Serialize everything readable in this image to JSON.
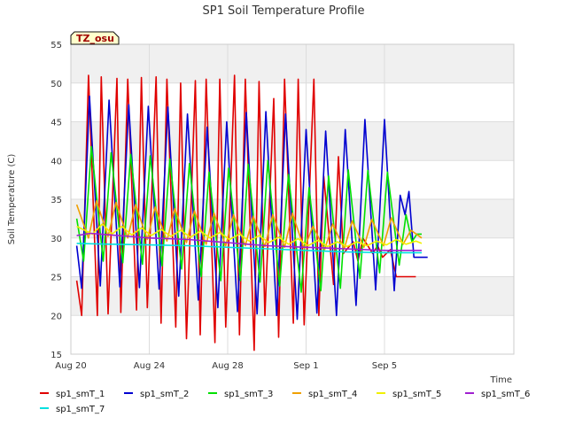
{
  "chart_data": {
    "type": "line",
    "title": "SP1 Soil Temperature Profile",
    "xlabel": "Time",
    "ylabel": "Soil Temperature (C)",
    "badge": "TZ_osu",
    "xlim": [
      0,
      22.6
    ],
    "ylim": [
      15,
      55
    ],
    "yticks": [
      15,
      20,
      25,
      30,
      35,
      40,
      45,
      50,
      55
    ],
    "xticks": [
      {
        "day": 0,
        "label": "Aug 20"
      },
      {
        "day": 4,
        "label": "Aug 24"
      },
      {
        "day": 8,
        "label": "Aug 28"
      },
      {
        "day": 12,
        "label": "Sep 1"
      },
      {
        "day": 16,
        "label": "Sep 5"
      }
    ],
    "grid": true,
    "legend_position": "bottom",
    "series": [
      {
        "name": "sp1_smT_1",
        "color": "#e00000",
        "x": [
          0.3,
          0.55,
          0.9,
          1.35,
          1.55,
          1.9,
          2.35,
          2.55,
          2.9,
          3.35,
          3.6,
          3.9,
          4.35,
          4.6,
          4.9,
          5.35,
          5.6,
          5.9,
          6.35,
          6.6,
          6.9,
          7.35,
          7.6,
          7.9,
          8.35,
          8.6,
          8.9,
          9.35,
          9.6,
          9.9,
          10.35,
          10.6,
          10.9,
          11.35,
          11.6,
          11.9,
          12.4,
          12.65,
          12.9,
          13.4,
          13.65,
          13.9,
          14.4,
          14.65,
          14.9,
          15.4,
          15.65,
          15.9,
          16.3,
          16.6,
          16.8,
          16.95,
          17.05,
          17.2,
          17.35,
          17.6
        ],
        "y": [
          24.5,
          20.0,
          51.0,
          20.0,
          50.8,
          20.2,
          50.6,
          20.4,
          50.5,
          20.7,
          50.7,
          21.0,
          50.8,
          19.0,
          50.5,
          18.5,
          50.0,
          17.0,
          50.3,
          17.5,
          50.5,
          16.5,
          50.5,
          18.5,
          51.0,
          17.5,
          50.5,
          15.5,
          50.2,
          20.0,
          48.0,
          17.2,
          50.5,
          19.0,
          50.5,
          18.8,
          50.5,
          20.0,
          38.0,
          24.0,
          40.5,
          28.0,
          29.5,
          27.0,
          30.0,
          28.0,
          29.0,
          27.5,
          28.5,
          25.0,
          25,
          25,
          25,
          25,
          25,
          25
        ]
      },
      {
        "name": "sp1_smT_2",
        "color": "#0000d0",
        "x": [
          0.3,
          0.55,
          0.95,
          1.5,
          1.95,
          2.5,
          2.95,
          3.5,
          3.95,
          4.5,
          4.95,
          5.5,
          5.95,
          6.5,
          6.95,
          7.5,
          7.95,
          8.5,
          8.95,
          9.5,
          9.95,
          10.5,
          10.95,
          11.55,
          12.0,
          12.55,
          13.0,
          13.55,
          14.0,
          14.55,
          15.0,
          15.55,
          16.0,
          16.5,
          16.8,
          17.05,
          17.25,
          17.5,
          17.7,
          17.9,
          18.05,
          18.2
        ],
        "y": [
          29.0,
          23.5,
          48.3,
          23.8,
          47.8,
          23.7,
          47.2,
          23.6,
          47.0,
          23.4,
          46.9,
          22.5,
          46.0,
          22.0,
          44.3,
          21.0,
          45.0,
          20.5,
          46.2,
          20.2,
          46.3,
          20.0,
          46.0,
          19.5,
          44.0,
          20.3,
          43.8,
          20.0,
          44.0,
          21.3,
          45.3,
          23.3,
          45.3,
          23.2,
          35.5,
          33.0,
          36.0,
          27.5,
          27.5,
          27.5,
          27.5,
          27.5
        ]
      },
      {
        "name": "sp1_smT_3",
        "color": "#00e000",
        "x": [
          0.3,
          0.65,
          1.05,
          1.65,
          2.05,
          2.65,
          3.05,
          3.65,
          4.05,
          4.65,
          5.05,
          5.65,
          6.05,
          6.65,
          7.05,
          7.65,
          8.05,
          8.65,
          9.05,
          9.65,
          10.05,
          10.65,
          11.1,
          11.75,
          12.15,
          12.75,
          13.15,
          13.75,
          14.15,
          14.75,
          15.15,
          15.75,
          16.15,
          16.75,
          17.1,
          17.4,
          17.65,
          17.9
        ],
        "y": [
          32.5,
          27.0,
          41.8,
          27.0,
          41.0,
          26.8,
          40.8,
          26.6,
          40.6,
          26.4,
          40.2,
          26.0,
          39.6,
          25.0,
          38.5,
          24.5,
          39.0,
          24.5,
          39.5,
          24.3,
          40.0,
          23.8,
          38.2,
          23.0,
          36.5,
          23.2,
          38.0,
          23.5,
          38.8,
          24.8,
          38.7,
          25.5,
          38.5,
          26.5,
          33.0,
          29.5,
          30.5,
          30.5
        ]
      },
      {
        "name": "sp1_smT_4",
        "color": "#f0a000",
        "x": [
          0.3,
          0.9,
          1.3,
          1.9,
          2.3,
          2.9,
          3.3,
          3.9,
          4.3,
          4.9,
          5.3,
          5.9,
          6.3,
          6.9,
          7.3,
          7.9,
          8.3,
          8.9,
          9.3,
          9.9,
          10.3,
          10.9,
          11.3,
          11.9,
          12.35,
          12.95,
          13.35,
          13.95,
          14.35,
          14.95,
          15.35,
          15.95,
          16.35,
          16.95,
          17.35,
          17.9
        ],
        "y": [
          34.3,
          30.0,
          34.8,
          30.2,
          34.6,
          30.0,
          34.3,
          29.8,
          34.0,
          29.6,
          33.8,
          29.4,
          33.5,
          29.2,
          33.2,
          29.0,
          33.0,
          29.0,
          32.8,
          28.9,
          33.0,
          28.8,
          33.2,
          28.6,
          31.5,
          28.5,
          31.8,
          28.6,
          32.2,
          28.8,
          32.4,
          29.0,
          32.6,
          29.2,
          31.0,
          30.0
        ]
      },
      {
        "name": "sp1_smT_5",
        "color": "#f0f000",
        "x": [
          0.3,
          1.1,
          1.6,
          2.1,
          2.6,
          3.1,
          3.6,
          4.1,
          4.6,
          5.1,
          5.6,
          6.1,
          6.6,
          7.1,
          7.6,
          8.1,
          8.6,
          9.1,
          9.6,
          10.1,
          10.6,
          11.1,
          11.6,
          12.1,
          12.6,
          13.1,
          13.6,
          14.1,
          14.6,
          15.1,
          15.6,
          16.1,
          16.6,
          17.1,
          17.6,
          17.9
        ],
        "y": [
          31.5,
          30.5,
          31.8,
          30.5,
          31.5,
          30.4,
          31.3,
          30.3,
          31.1,
          30.2,
          31.0,
          30.1,
          30.9,
          30.0,
          30.7,
          29.8,
          30.5,
          29.6,
          30.3,
          29.4,
          30.1,
          29.2,
          29.9,
          29.0,
          29.7,
          28.9,
          29.5,
          28.9,
          29.5,
          29.0,
          29.6,
          29.1,
          29.8,
          29.2,
          29.6,
          29.3
        ]
      },
      {
        "name": "sp1_smT_6",
        "color": "#a020d0",
        "x": [
          0.3,
          1.0,
          2.0,
          3.0,
          4.0,
          5.0,
          6.0,
          7.0,
          8.0,
          9.0,
          10.0,
          11.0,
          12.0,
          13.0,
          14.0,
          15.0,
          16.0,
          17.0,
          17.9
        ],
        "y": [
          30.3,
          30.6,
          30.4,
          30.2,
          30.0,
          29.9,
          29.8,
          29.6,
          29.4,
          29.2,
          29.0,
          28.9,
          28.8,
          28.7,
          28.6,
          28.5,
          28.4,
          28.4,
          28.4
        ]
      },
      {
        "name": "sp1_smT_7",
        "color": "#00e0e0",
        "x": [
          0.3,
          2.0,
          4.0,
          6.0,
          8.0,
          10.0,
          12.0,
          14.0,
          16.0,
          17.9
        ],
        "y": [
          29.3,
          29.2,
          29.1,
          29.0,
          28.8,
          28.6,
          28.4,
          28.2,
          28.1,
          28.1
        ]
      }
    ]
  }
}
